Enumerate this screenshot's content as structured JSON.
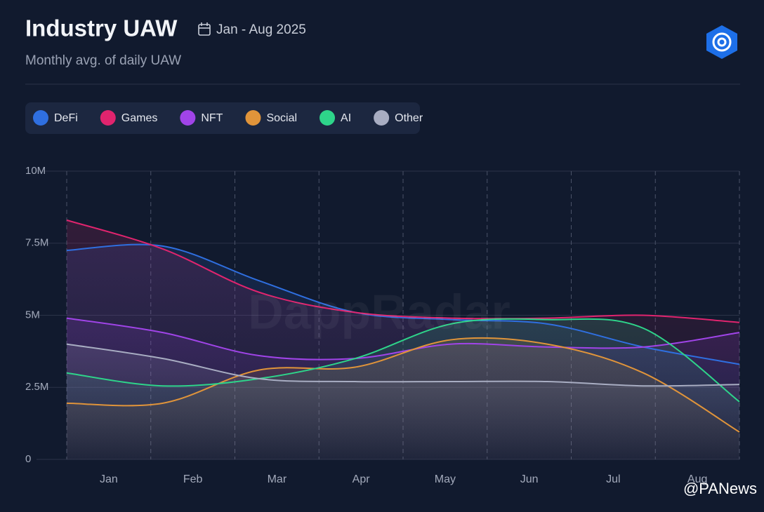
{
  "chart_data": {
    "type": "line",
    "title": "Industry UAW",
    "date_range": "Jan - Aug 2025",
    "subtitle": "Monthly avg. of daily UAW",
    "categories": [
      "Jan",
      "Feb",
      "Mar",
      "Apr",
      "May",
      "Jun",
      "Jul",
      "Aug"
    ],
    "series": [
      {
        "name": "DeFi",
        "color": "#2f6fe0",
        "values": [
          7250000,
          7400000,
          6200000,
          5100000,
          4850000,
          4700000,
          3900000,
          3300000
        ]
      },
      {
        "name": "Games",
        "color": "#e0246e",
        "values": [
          8300000,
          7300000,
          5800000,
          5100000,
          4900000,
          4900000,
          5000000,
          4750000
        ]
      },
      {
        "name": "NFT",
        "color": "#a044e8",
        "values": [
          4900000,
          4400000,
          3600000,
          3500000,
          4000000,
          3900000,
          3900000,
          4400000
        ]
      },
      {
        "name": "Social",
        "color": "#e0943a",
        "values": [
          1950000,
          1950000,
          3100000,
          3200000,
          4150000,
          4000000,
          3000000,
          950000
        ]
      },
      {
        "name": "AI",
        "color": "#2ed48a",
        "values": [
          3000000,
          2550000,
          2800000,
          3500000,
          4700000,
          4850000,
          4550000,
          2000000
        ]
      },
      {
        "name": "Other",
        "color": "#a8adc2",
        "values": [
          4000000,
          3500000,
          2800000,
          2700000,
          2700000,
          2700000,
          2550000,
          2600000
        ]
      }
    ],
    "ylim": [
      0,
      10000000
    ],
    "yticks": [
      0,
      {
        "value": 2500000,
        "label": "2.5M"
      },
      {
        "value": 5000000,
        "label": "5M"
      },
      {
        "value": 7500000,
        "label": "7.5M"
      },
      {
        "value": 10000000,
        "label": "10M"
      }
    ],
    "grid": true,
    "legend": "top-left",
    "watermark": "DappRadar",
    "source_mark": "@PANews"
  }
}
